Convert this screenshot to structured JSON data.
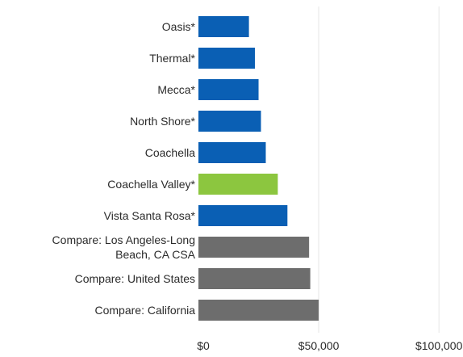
{
  "chart_data": {
    "type": "bar",
    "orientation": "horizontal",
    "categories": [
      "Oasis*",
      "Thermal*",
      "Mecca*",
      "North Shore*",
      "Coachella",
      "Coachella Valley*",
      "Vista Santa Rosa*",
      [
        "Compare: Los Angeles-Long",
        "Beach, CA CSA"
      ],
      "Compare: United States",
      "Compare: California"
    ],
    "values": [
      21000,
      23500,
      25000,
      26000,
      28000,
      33000,
      37000,
      46000,
      46500,
      50000
    ],
    "bar_colors": [
      "#0a5fb4",
      "#0a5fb4",
      "#0a5fb4",
      "#0a5fb4",
      "#0a5fb4",
      "#8cc63f",
      "#0a5fb4",
      "#6d6d6d",
      "#6d6d6d",
      "#6d6d6d"
    ],
    "xlim": [
      0,
      110000
    ],
    "x_ticks": [
      0,
      50000,
      100000
    ],
    "x_tick_labels": [
      "$0",
      "$50,000",
      "$100,000"
    ],
    "grid": true
  }
}
